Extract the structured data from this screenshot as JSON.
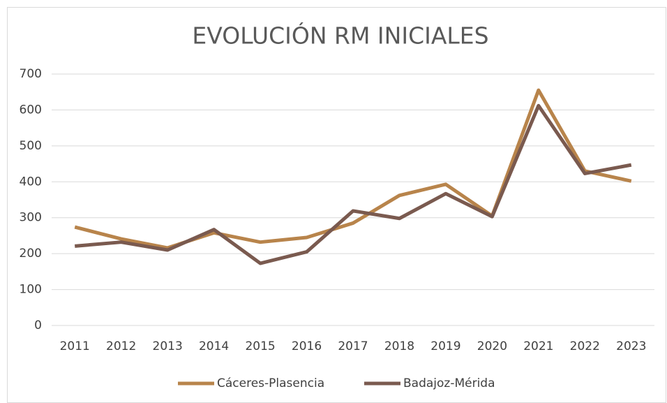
{
  "chart_data": {
    "type": "line",
    "title": "EVOLUCIÓN RM INICIALES",
    "categories": [
      "2011",
      "2012",
      "2013",
      "2014",
      "2015",
      "2016",
      "2017",
      "2018",
      "2019",
      "2020",
      "2021",
      "2022",
      "2023"
    ],
    "series": [
      {
        "name": "Cáceres-Plasencia",
        "color": "#b8844b",
        "values": [
          274,
          241,
          216,
          258,
          232,
          245,
          285,
          362,
          393,
          305,
          655,
          430,
          402
        ]
      },
      {
        "name": "Badajoz-Mérida",
        "color": "#7a5a4f",
        "values": [
          221,
          232,
          210,
          267,
          173,
          205,
          319,
          298,
          367,
          303,
          612,
          423,
          447
        ]
      }
    ],
    "ylim": [
      0,
      700
    ],
    "yticks": [
      0,
      100,
      200,
      300,
      400,
      500,
      600,
      700
    ],
    "grid": true,
    "legend": "bottom"
  }
}
